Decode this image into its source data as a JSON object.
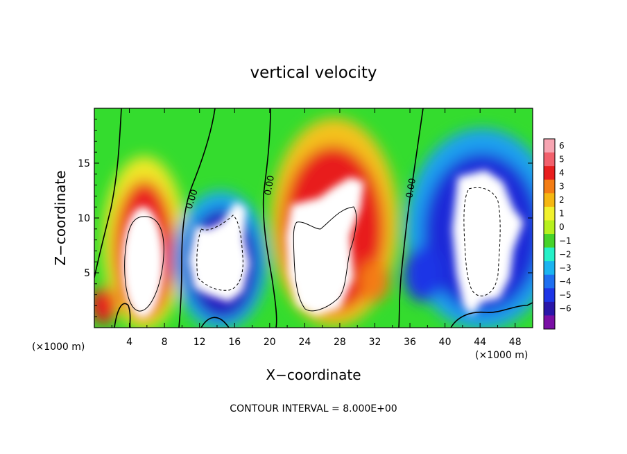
{
  "chart_data": {
    "type": "heatmap",
    "title": "vertical velocity",
    "xlabel": "X−coordinate",
    "ylabel": "Z−coordinate",
    "x_unit_left": "(×1000 m)",
    "x_unit_right": "(×1000 m)",
    "xlim": [
      0,
      50
    ],
    "ylim": [
      0,
      20
    ],
    "x_ticks": [
      4,
      8,
      12,
      16,
      20,
      24,
      28,
      32,
      36,
      40,
      44,
      48
    ],
    "y_ticks": [
      5,
      10,
      15
    ],
    "colorbar_ticks": [
      "6",
      "5",
      "4",
      "3",
      "2",
      "1",
      "0",
      "−1",
      "−2",
      "−3",
      "−4",
      "−5",
      "−6"
    ],
    "colorbar_colors": [
      "#f7a5b2",
      "#f2606c",
      "#e81e1e",
      "#f47d15",
      "#f5b712",
      "#f1f12e",
      "#b6f01e",
      "#46d32a",
      "#25f0c8",
      "#1ab4f0",
      "#1e6ff0",
      "#1d35e6",
      "#2a16a8",
      "#7a0fa5"
    ],
    "contour_labels": [
      "0.00",
      "0.00",
      "0.00"
    ],
    "contour_interval_text": "CONTOUR INTERVAL = 8.000E+00",
    "cells": [
      {
        "sign": 1,
        "x": 5.5,
        "z": 7.0,
        "peak": 8.0
      },
      {
        "sign": -1,
        "x": 14.5,
        "z": 6.5,
        "peak": 7.0
      },
      {
        "sign": 1,
        "x": 27.5,
        "z": 8.5,
        "peak": 9.0
      },
      {
        "sign": -1,
        "x": 43.5,
        "z": 7.5,
        "peak": 8.0
      }
    ]
  }
}
